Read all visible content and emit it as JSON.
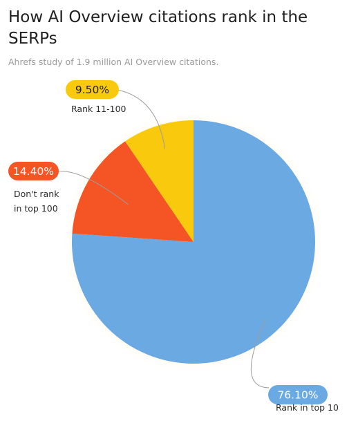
{
  "title": "How AI Overview citations rank in the SERPs",
  "subtitle": "Ahrefs study of 1.9 million AI Overview citations.",
  "chart_data": {
    "type": "pie",
    "title": "How AI Overview citations rank in the SERPs",
    "subtitle": "Ahrefs study of 1.9 million AI Overview citations.",
    "slices": [
      {
        "label": "Rank in top 10",
        "value": 76.1,
        "display": "76.10%",
        "color": "#6aa9e2",
        "text_color": "#ffffff"
      },
      {
        "label": "Don't rank in top 100",
        "value": 14.4,
        "display": "14.40%",
        "color": "#f55424",
        "text_color": "#ffffff"
      },
      {
        "label": "Rank 11-100",
        "value": 9.5,
        "display": "9.50%",
        "color": "#f9c90e",
        "text_color": "#1f1f1f"
      }
    ],
    "start": "12 o'clock",
    "direction": "clockwise",
    "legend": "none (callout labels)"
  }
}
